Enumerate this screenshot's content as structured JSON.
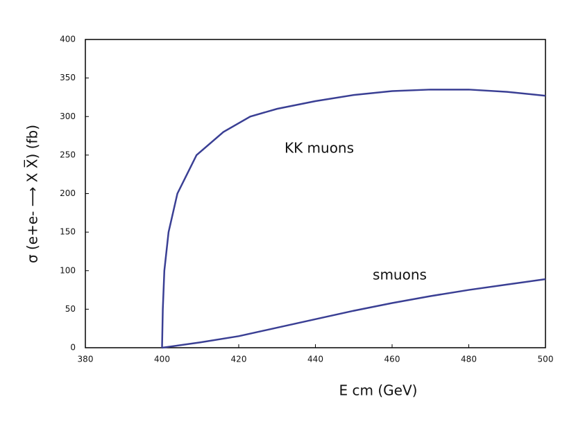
{
  "chart_data": {
    "type": "line",
    "xlabel": "E cm  (GeV)",
    "ylabel": "σ  (e+e-  ⟶ X X̅)   (fb)",
    "xlim": [
      380,
      500
    ],
    "xticks": [
      380,
      400,
      420,
      440,
      460,
      480,
      500
    ],
    "ylim": [
      0,
      400
    ],
    "yticks": [
      0,
      50,
      100,
      150,
      200,
      250,
      300,
      350,
      400
    ],
    "grid": false,
    "series": [
      {
        "name": "KK muons",
        "color": "#3a3f94",
        "x": [
          400,
          400.2,
          400.6,
          401.7,
          404,
          409,
          416,
          423,
          430,
          440,
          450,
          460,
          470,
          480,
          490,
          500
        ],
        "values": [
          0,
          50,
          100,
          150,
          200,
          250,
          280,
          300,
          310,
          320,
          328,
          333,
          335,
          335,
          332,
          327
        ]
      },
      {
        "name": "smuons",
        "color": "#3a3f94",
        "x": [
          400,
          410,
          420,
          430,
          440,
          450,
          460,
          470,
          480,
          490,
          500
        ],
        "values": [
          0,
          7,
          15,
          26,
          37,
          48,
          58,
          67,
          75,
          82,
          89
        ]
      }
    ]
  }
}
